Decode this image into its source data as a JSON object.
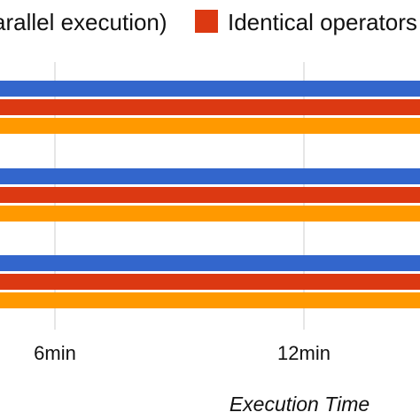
{
  "chart_data": {
    "type": "bar",
    "orientation": "horizontal",
    "xlabel": "Execution Time",
    "ylabel": "",
    "x_ticks": [
      {
        "value": 6,
        "label": "6min"
      },
      {
        "value": 12,
        "label": "12min"
      }
    ],
    "xlim": [
      0,
      17.5
    ],
    "grid": true,
    "legend_position": "top",
    "categories": [
      "",
      "",
      ""
    ],
    "series": [
      {
        "name": "...arallel execution)",
        "color": "#3366cc",
        "values": [
          17.5,
          17.5,
          17.5
        ]
      },
      {
        "name": "Identical operators",
        "color": "#dc3912",
        "values": [
          17.5,
          17.5,
          17.5
        ]
      },
      {
        "name": "",
        "color": "#ff9900",
        "values": [
          17.5,
          16.6,
          16.95
        ]
      }
    ],
    "legend": [
      {
        "label": "arallel execution)",
        "color": ""
      },
      {
        "label": "Identical operators",
        "color": "#dc3912"
      }
    ]
  }
}
